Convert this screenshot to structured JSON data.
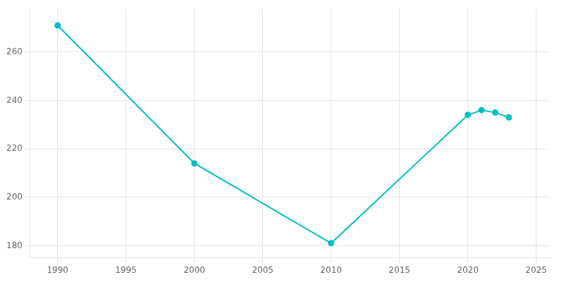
{
  "chart_data": {
    "type": "line",
    "x": [
      1990,
      2000,
      2010,
      2020,
      2021,
      2022,
      2023
    ],
    "values": [
      271,
      214,
      181,
      234,
      236,
      235,
      233
    ],
    "color": "#00BFBF",
    "marker": "circle",
    "xlim": [
      1988,
      2026
    ],
    "xticks": [
      1990,
      1995,
      2000,
      2005,
      2010,
      2015,
      2020,
      2025
    ],
    "ylim": [
      175,
      278
    ],
    "yticks": [
      180,
      200,
      220,
      240,
      260
    ],
    "grid": true
  }
}
